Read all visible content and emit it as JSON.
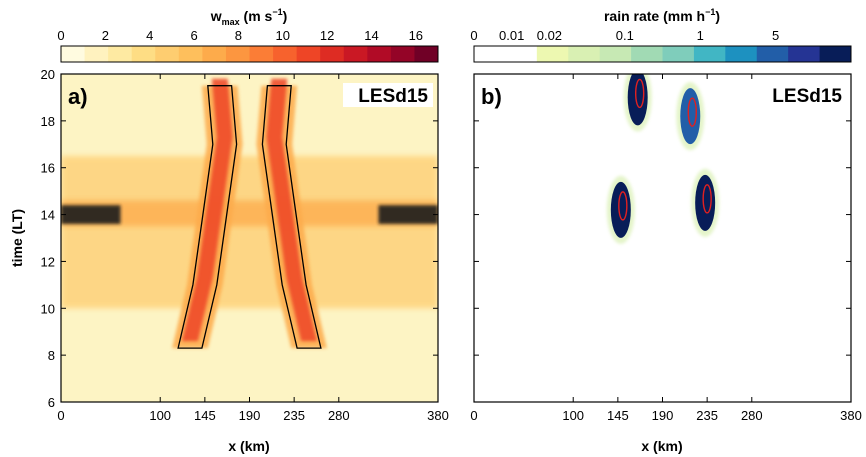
{
  "panel_a": {
    "tag": "a)",
    "case_label": "LESd15",
    "colorbar": {
      "title_main": "w",
      "title_sub": "max",
      "title_units_pre": "(m s",
      "title_units_exp": "−1",
      "title_units_post": ")",
      "tick_labels": [
        "0",
        "2",
        "4",
        "6",
        "8",
        "10",
        "12",
        "14",
        "16"
      ],
      "colors": [
        "#fffbe0",
        "#fff2bf",
        "#feeaa2",
        "#fedd84",
        "#fecd70",
        "#febf5c",
        "#fdab4b",
        "#fc9640",
        "#fb7d36",
        "#f7622d",
        "#ee4526",
        "#de2c23",
        "#ca1824",
        "#b10b26",
        "#940427",
        "#700026"
      ]
    }
  },
  "panel_b": {
    "tag": "b)",
    "case_label": "LESd15",
    "colorbar": {
      "title_pre": "rain rate (mm h",
      "title_exp": "−1",
      "title_post": ")",
      "tick_labels": [
        "0",
        "0.01",
        "0.02",
        "0.1",
        "1",
        "5"
      ],
      "colors": [
        "#ffffff",
        "#ffffff",
        "#edf8b1",
        "#d9f0b3",
        "#c7e9b4",
        "#a1dab4",
        "#7fcdbb",
        "#41b6c4",
        "#1d91c0",
        "#225ea8",
        "#253494",
        "#081d58"
      ]
    }
  },
  "axes": {
    "xlabel": "x (km)",
    "ylabel": "time (LT)",
    "x_tick_labels": [
      "0",
      "100",
      "145",
      "190",
      "235",
      "280",
      "380"
    ],
    "y_tick_labels": [
      "6",
      "8",
      "10",
      "12",
      "14",
      "16",
      "18",
      "20"
    ]
  },
  "chart_data": [
    {
      "type": "heatmap",
      "variable": "w_max",
      "units": "m s-1",
      "xlabel": "x (km)",
      "ylabel": "time (LT)",
      "xlim": [
        0,
        380
      ],
      "ylim": [
        6,
        20
      ],
      "x_ticks": [
        0,
        100,
        145,
        190,
        235,
        280,
        380
      ],
      "y_ticks": [
        6,
        8,
        10,
        12,
        14,
        16,
        18,
        20
      ],
      "colorbar_range": [
        0,
        17
      ],
      "background_value": 2,
      "bands": [
        {
          "t_start": 10,
          "t_end": 16.5,
          "value": 4
        },
        {
          "t_start": 13.5,
          "t_end": 14.6,
          "value": 6
        }
      ],
      "strong_updraft_edges": [
        {
          "x_range": [
            0,
            60
          ],
          "t_range": [
            13.6,
            14.4
          ],
          "value": 16
        },
        {
          "x_range": [
            320,
            380
          ],
          "t_range": [
            13.6,
            14.4
          ],
          "value": 16
        }
      ],
      "convective_branches": [
        {
          "name": "left",
          "base": [
            [
              130,
              8.3
            ],
            [
              145,
              11
            ],
            [
              155,
              14
            ],
            [
              165,
              17
            ],
            [
              160,
              19.5
            ]
          ],
          "peak_value": 12
        },
        {
          "name": "right",
          "base": [
            [
              250,
              8.3
            ],
            [
              235,
              11
            ],
            [
              225,
              14
            ],
            [
              215,
              17
            ],
            [
              220,
              19.5
            ]
          ],
          "peak_value": 12
        }
      ]
    },
    {
      "type": "heatmap",
      "variable": "rain rate",
      "units": "mm h-1",
      "xlabel": "x (km)",
      "ylabel": "time (LT)",
      "xlim": [
        0,
        380
      ],
      "ylim": [
        6,
        20
      ],
      "x_ticks": [
        0,
        100,
        145,
        190,
        235,
        280,
        380
      ],
      "y_ticks": [
        6,
        8,
        10,
        12,
        14,
        16,
        18,
        20
      ],
      "colorbar_levels": [
        0,
        0.01,
        0.02,
        0.1,
        1,
        5
      ],
      "rain_cells": [
        {
          "x": 148,
          "t": 14.2,
          "peak_mm_h": 5
        },
        {
          "x": 165,
          "t": 19.0,
          "peak_mm_h": 5
        },
        {
          "x": 233,
          "t": 14.5,
          "peak_mm_h": 5
        },
        {
          "x": 218,
          "t": 18.2,
          "peak_mm_h": 1
        }
      ]
    }
  ]
}
